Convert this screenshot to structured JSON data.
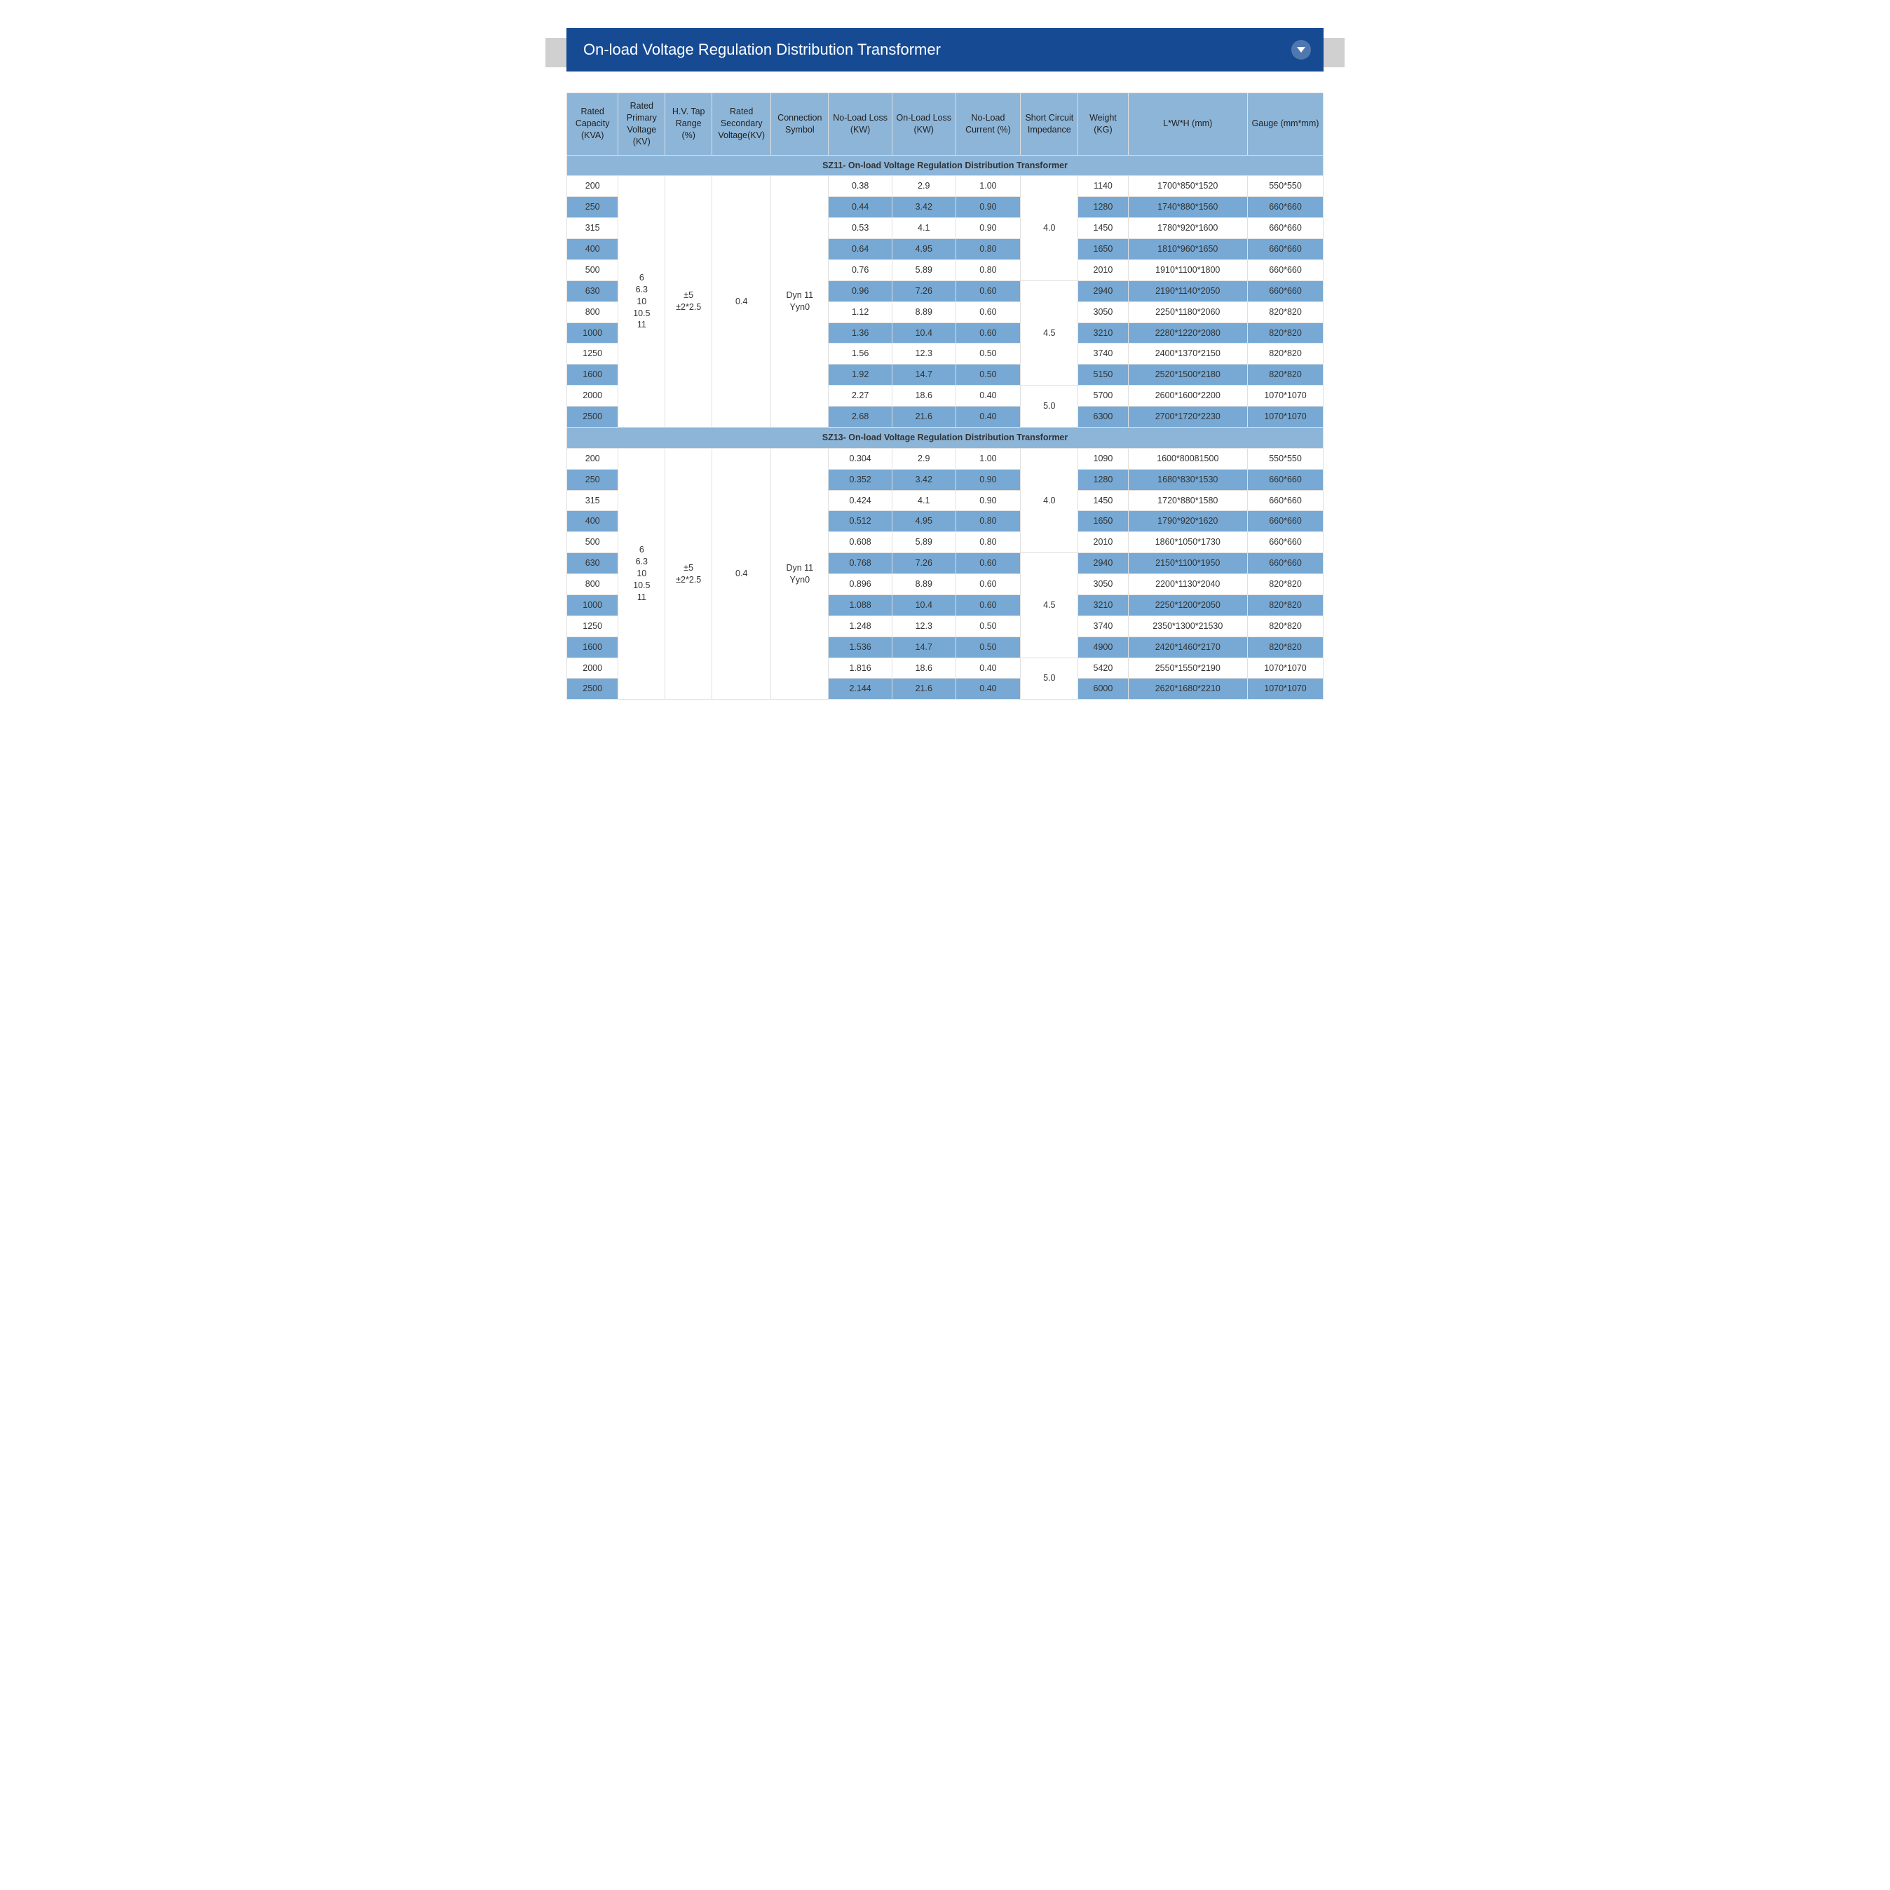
{
  "title": "On-load Voltage Regulation Distribution Transformer",
  "colors": {
    "title_bg": "#164b94",
    "title_text": "#ffffff",
    "grey_tab": "#d0d0d0",
    "header_bg": "#8db5d8",
    "stripe_odd": "#77a9d4",
    "stripe_even": "#ffffff",
    "border": "#e0e0e0",
    "text": "#333333"
  },
  "columns": [
    "Rated Capacity (KVA)",
    "Rated Primary Voltage (KV)",
    "H.V. Tap Range (%)",
    "Rated Secondary Voltage(KV)",
    "Connection Symbol",
    "No-Load Loss (KW)",
    "On-Load Loss (KW)",
    "No-Load Current (%)",
    "Short Circuit Impedance",
    "Weight (KG)",
    "L*W*H (mm)",
    "Gauge (mm*mm)"
  ],
  "shared": {
    "primary_voltage_lines": [
      "6",
      "6.3",
      "10",
      "10.5",
      "11"
    ],
    "tap_range_lines": [
      "±5",
      "±2*2.5"
    ],
    "secondary_voltage": "0.4",
    "connection_symbol_lines": [
      "Dyn 11",
      "Yyn0"
    ]
  },
  "sections": [
    {
      "title": "SZ11- On-load Voltage Regulation Distribution Transformer",
      "impedance_groups": [
        {
          "value": "4.0",
          "span": 5
        },
        {
          "value": "4.5",
          "span": 5
        },
        {
          "value": "5.0",
          "span": 2
        }
      ],
      "rows": [
        {
          "capacity": "200",
          "noLoadLoss": "0.38",
          "onLoadLoss": "2.9",
          "noLoadCurrent": "1.00",
          "weight": "1140",
          "lwh": "1700*850*1520",
          "gauge": "550*550"
        },
        {
          "capacity": "250",
          "noLoadLoss": "0.44",
          "onLoadLoss": "3.42",
          "noLoadCurrent": "0.90",
          "weight": "1280",
          "lwh": "1740*880*1560",
          "gauge": "660*660"
        },
        {
          "capacity": "315",
          "noLoadLoss": "0.53",
          "onLoadLoss": "4.1",
          "noLoadCurrent": "0.90",
          "weight": "1450",
          "lwh": "1780*920*1600",
          "gauge": "660*660"
        },
        {
          "capacity": "400",
          "noLoadLoss": "0.64",
          "onLoadLoss": "4.95",
          "noLoadCurrent": "0.80",
          "weight": "1650",
          "lwh": "1810*960*1650",
          "gauge": "660*660"
        },
        {
          "capacity": "500",
          "noLoadLoss": "0.76",
          "onLoadLoss": "5.89",
          "noLoadCurrent": "0.80",
          "weight": "2010",
          "lwh": "1910*1100*1800",
          "gauge": "660*660"
        },
        {
          "capacity": "630",
          "noLoadLoss": "0.96",
          "onLoadLoss": "7.26",
          "noLoadCurrent": "0.60",
          "weight": "2940",
          "lwh": "2190*1140*2050",
          "gauge": "660*660"
        },
        {
          "capacity": "800",
          "noLoadLoss": "1.12",
          "onLoadLoss": "8.89",
          "noLoadCurrent": "0.60",
          "weight": "3050",
          "lwh": "2250*1180*2060",
          "gauge": "820*820"
        },
        {
          "capacity": "1000",
          "noLoadLoss": "1.36",
          "onLoadLoss": "10.4",
          "noLoadCurrent": "0.60",
          "weight": "3210",
          "lwh": "2280*1220*2080",
          "gauge": "820*820"
        },
        {
          "capacity": "1250",
          "noLoadLoss": "1.56",
          "onLoadLoss": "12.3",
          "noLoadCurrent": "0.50",
          "weight": "3740",
          "lwh": "2400*1370*2150",
          "gauge": "820*820"
        },
        {
          "capacity": "1600",
          "noLoadLoss": "1.92",
          "onLoadLoss": "14.7",
          "noLoadCurrent": "0.50",
          "weight": "5150",
          "lwh": "2520*1500*2180",
          "gauge": "820*820"
        },
        {
          "capacity": "2000",
          "noLoadLoss": "2.27",
          "onLoadLoss": "18.6",
          "noLoadCurrent": "0.40",
          "weight": "5700",
          "lwh": "2600*1600*2200",
          "gauge": "1070*1070"
        },
        {
          "capacity": "2500",
          "noLoadLoss": "2.68",
          "onLoadLoss": "21.6",
          "noLoadCurrent": "0.40",
          "weight": "6300",
          "lwh": "2700*1720*2230",
          "gauge": "1070*1070"
        }
      ]
    },
    {
      "title": "SZ13- On-load Voltage Regulation Distribution Transformer",
      "impedance_groups": [
        {
          "value": "4.0",
          "span": 5
        },
        {
          "value": "4.5",
          "span": 5
        },
        {
          "value": "5.0",
          "span": 2
        }
      ],
      "rows": [
        {
          "capacity": "200",
          "noLoadLoss": "0.304",
          "onLoadLoss": "2.9",
          "noLoadCurrent": "1.00",
          "weight": "1090",
          "lwh": "1600*80081500",
          "gauge": "550*550"
        },
        {
          "capacity": "250",
          "noLoadLoss": "0.352",
          "onLoadLoss": "3.42",
          "noLoadCurrent": "0.90",
          "weight": "1280",
          "lwh": "1680*830*1530",
          "gauge": "660*660"
        },
        {
          "capacity": "315",
          "noLoadLoss": "0.424",
          "onLoadLoss": "4.1",
          "noLoadCurrent": "0.90",
          "weight": "1450",
          "lwh": "1720*880*1580",
          "gauge": "660*660"
        },
        {
          "capacity": "400",
          "noLoadLoss": "0.512",
          "onLoadLoss": "4.95",
          "noLoadCurrent": "0.80",
          "weight": "1650",
          "lwh": "1790*920*1620",
          "gauge": "660*660"
        },
        {
          "capacity": "500",
          "noLoadLoss": "0.608",
          "onLoadLoss": "5.89",
          "noLoadCurrent": "0.80",
          "weight": "2010",
          "lwh": "1860*1050*1730",
          "gauge": "660*660"
        },
        {
          "capacity": "630",
          "noLoadLoss": "0.768",
          "onLoadLoss": "7.26",
          "noLoadCurrent": "0.60",
          "weight": "2940",
          "lwh": "2150*1100*1950",
          "gauge": "660*660"
        },
        {
          "capacity": "800",
          "noLoadLoss": "0.896",
          "onLoadLoss": "8.89",
          "noLoadCurrent": "0.60",
          "weight": "3050",
          "lwh": "2200*1130*2040",
          "gauge": "820*820"
        },
        {
          "capacity": "1000",
          "noLoadLoss": "1.088",
          "onLoadLoss": "10.4",
          "noLoadCurrent": "0.60",
          "weight": "3210",
          "lwh": "2250*1200*2050",
          "gauge": "820*820"
        },
        {
          "capacity": "1250",
          "noLoadLoss": "1.248",
          "onLoadLoss": "12.3",
          "noLoadCurrent": "0.50",
          "weight": "3740",
          "lwh": "2350*1300*21530",
          "gauge": "820*820"
        },
        {
          "capacity": "1600",
          "noLoadLoss": "1.536",
          "onLoadLoss": "14.7",
          "noLoadCurrent": "0.50",
          "weight": "4900",
          "lwh": "2420*1460*2170",
          "gauge": "820*820"
        },
        {
          "capacity": "2000",
          "noLoadLoss": "1.816",
          "onLoadLoss": "18.6",
          "noLoadCurrent": "0.40",
          "weight": "5420",
          "lwh": "2550*1550*2190",
          "gauge": "1070*1070"
        },
        {
          "capacity": "2500",
          "noLoadLoss": "2.144",
          "onLoadLoss": "21.6",
          "noLoadCurrent": "0.40",
          "weight": "6000",
          "lwh": "2620*1680*2210",
          "gauge": "1070*1070"
        }
      ]
    }
  ]
}
